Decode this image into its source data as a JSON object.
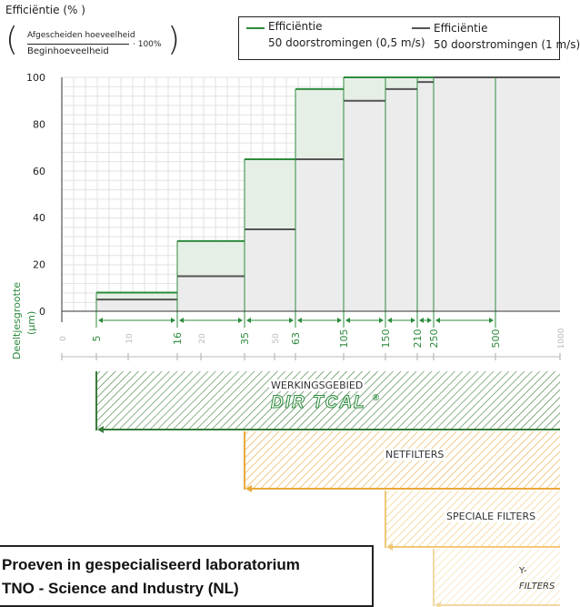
{
  "y_axis_title": "Efficiëntie (% )",
  "formula": {
    "numerator": "Afgescheiden hoeveelheid",
    "denominator": "Beginhoeveelheid",
    "factor": "· 100%"
  },
  "x_axis_title": "Deeltjesgrootte",
  "x_unit": "(µm)",
  "legend": [
    {
      "line1": "Efficiëntie",
      "line2": "50 doorstromingen (0,5 m/s)",
      "color": "#2e8b3e"
    },
    {
      "line1": "Efficiëntie",
      "line2": "50 doorstromingen (1 m/s)",
      "color": "#555555"
    }
  ],
  "bands": [
    {
      "label": "WERKINGSGEBIED",
      "brand": "DIR TCAL",
      "brand_mark": "®",
      "from": 5,
      "to": 1000,
      "color": "#3a7a3a"
    },
    {
      "label": "NETFILTERS",
      "from": 35,
      "to": 1000,
      "color": "#e8a93b"
    },
    {
      "label": "SPECIALE FILTERS",
      "from": 150,
      "to": 1000,
      "color": "#f0c777"
    },
    {
      "label": "Y-",
      "label2": "FILTERS",
      "from": 250,
      "to": 1000,
      "color": "#f2d9a2"
    }
  ],
  "lab_note": {
    "line1": "Proeven in gespecialiseerd laboratorium",
    "line2": "TNO - Science and Industry (NL)"
  },
  "chart_data": {
    "type": "step",
    "title": "",
    "xlabel": "Deeltjesgrootte (µm)",
    "ylabel": "Efficiëntie (% )",
    "x_scale": "log",
    "xlim": [
      0,
      1000
    ],
    "ylim": [
      0,
      100
    ],
    "yticks": [
      0,
      20,
      40,
      60,
      80,
      100
    ],
    "xticks_major": [
      5,
      16,
      35,
      63,
      105,
      150,
      210,
      250,
      500
    ],
    "xticks_minor": [
      0,
      10,
      20,
      50,
      1000
    ],
    "grid": true,
    "legend_position": "top-right",
    "series": [
      {
        "name": "Efficiëntie 50 doorstromingen (0,5 m/s)",
        "steps": [
          {
            "from": 5,
            "to": 16,
            "value": 8
          },
          {
            "from": 16,
            "to": 35,
            "value": 30
          },
          {
            "from": 35,
            "to": 63,
            "value": 65
          },
          {
            "from": 63,
            "to": 105,
            "value": 95
          },
          {
            "from": 105,
            "to": 150,
            "value": 100
          },
          {
            "from": 150,
            "to": 210,
            "value": 100
          },
          {
            "from": 210,
            "to": 250,
            "value": 100
          },
          {
            "from": 250,
            "to": 500,
            "value": 100
          },
          {
            "from": 500,
            "to": 1000,
            "value": 100
          }
        ]
      },
      {
        "name": "Efficiëntie 50 doorstromingen (1 m/s)",
        "steps": [
          {
            "from": 5,
            "to": 16,
            "value": 5
          },
          {
            "from": 16,
            "to": 35,
            "value": 15
          },
          {
            "from": 35,
            "to": 63,
            "value": 35
          },
          {
            "from": 63,
            "to": 105,
            "value": 65
          },
          {
            "from": 105,
            "to": 150,
            "value": 90
          },
          {
            "from": 150,
            "to": 210,
            "value": 95
          },
          {
            "from": 210,
            "to": 250,
            "value": 98
          },
          {
            "from": 250,
            "to": 500,
            "value": 100
          },
          {
            "from": 500,
            "to": 1000,
            "value": 100
          }
        ]
      }
    ]
  }
}
